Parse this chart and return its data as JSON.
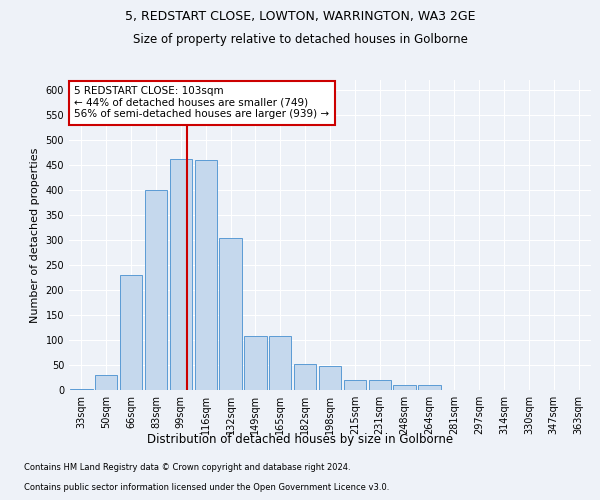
{
  "title_line1": "5, REDSTART CLOSE, LOWTON, WARRINGTON, WA3 2GE",
  "title_line2": "Size of property relative to detached houses in Golborne",
  "xlabel": "Distribution of detached houses by size in Golborne",
  "ylabel": "Number of detached properties",
  "categories": [
    "33sqm",
    "50sqm",
    "66sqm",
    "83sqm",
    "99sqm",
    "116sqm",
    "132sqm",
    "149sqm",
    "165sqm",
    "182sqm",
    "198sqm",
    "215sqm",
    "231sqm",
    "248sqm",
    "264sqm",
    "281sqm",
    "297sqm",
    "314sqm",
    "330sqm",
    "347sqm",
    "363sqm"
  ],
  "values": [
    2,
    30,
    230,
    400,
    462,
    460,
    305,
    108,
    108,
    52,
    48,
    20,
    20,
    10,
    10,
    1,
    0,
    0,
    0,
    1,
    0
  ],
  "bar_color": "#c5d8ed",
  "bar_edge_color": "#5b9bd5",
  "property_size_label": "5 REDSTART CLOSE: 103sqm",
  "pct_smaller": 44,
  "n_smaller": 749,
  "pct_larger_semi": 56,
  "n_larger_semi": 939,
  "vline_color": "#cc0000",
  "ylim": [
    0,
    620
  ],
  "yticks": [
    0,
    50,
    100,
    150,
    200,
    250,
    300,
    350,
    400,
    450,
    500,
    550,
    600
  ],
  "footnote1": "Contains HM Land Registry data © Crown copyright and database right 2024.",
  "footnote2": "Contains public sector information licensed under the Open Government Licence v3.0.",
  "bg_color": "#eef2f8",
  "grid_color": "#ffffff"
}
